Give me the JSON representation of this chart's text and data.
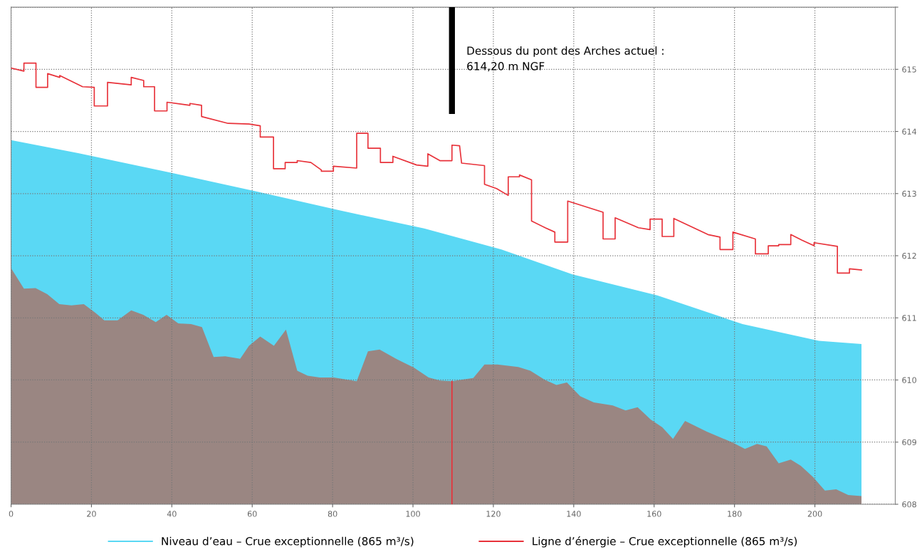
{
  "chart_data": {
    "type": "line",
    "xlim": [
      0,
      220
    ],
    "xticks": [
      0,
      20,
      40,
      60,
      80,
      100,
      120,
      140,
      160,
      180,
      200
    ],
    "ylim": [
      608,
      616
    ],
    "yticks": [
      608,
      609,
      610,
      611,
      612,
      613,
      614,
      615,
      {
        "value": 616,
        "label": null
      }
    ],
    "grid": true,
    "legend": "bottom",
    "series": [
      {
        "name": "Niveau d’eau – Crue exceptionnelle (865 m³/s)",
        "type": "area",
        "color": "#5ad8f4",
        "x": [
          0,
          16.7,
          40.2,
          60.6,
          81.7,
          102.8,
          122,
          139.7,
          160.8,
          182,
          201,
          211.6
        ],
        "values": [
          613.86,
          613.65,
          613.33,
          613.04,
          612.73,
          612.44,
          612.1,
          611.7,
          611.36,
          610.9,
          610.63,
          610.58
        ]
      },
      {
        "type": "area",
        "color": "#9a8682",
        "x": [
          0,
          3.2,
          6.1,
          9,
          12,
          15,
          18.1,
          21,
          23.2,
          26.5,
          29.9,
          32.9,
          36,
          38.7,
          41.6,
          44.8,
          47.5,
          50.4,
          53.3,
          57,
          59.2,
          62,
          65.4,
          68.4,
          71.2,
          73.8,
          76.8,
          80.3,
          86,
          88.8,
          91.7,
          95.8,
          100.2,
          103.9,
          106.7,
          109.7,
          111.6,
          115,
          117.8,
          121,
          126.2,
          129.2,
          132.9,
          135.7,
          138.3,
          141.6,
          145,
          149.7,
          152.9,
          155.9,
          159.2,
          162,
          164.7,
          167.7,
          173.1,
          179.6,
          182.6,
          185.6,
          188,
          191,
          194,
          196.5,
          199.5,
          202.5,
          205.3,
          208.3,
          211.6
        ],
        "values": [
          611.8,
          611.47,
          611.48,
          611.38,
          611.22,
          611.2,
          611.22,
          611.08,
          610.96,
          610.96,
          611.12,
          611.05,
          610.93,
          611.05,
          610.91,
          610.9,
          610.85,
          610.37,
          610.38,
          610.34,
          610.55,
          610.7,
          610.55,
          610.81,
          610.15,
          610.07,
          610.04,
          610.04,
          609.98,
          610.46,
          610.49,
          610.34,
          610.2,
          610.04,
          609.99,
          609.98,
          610.0,
          610.03,
          610.25,
          610.25,
          610.21,
          610.15,
          610.0,
          609.92,
          609.96,
          609.74,
          609.64,
          609.59,
          609.51,
          609.56,
          609.36,
          609.24,
          609.05,
          609.34,
          609.17,
          608.99,
          608.89,
          608.97,
          608.93,
          608.66,
          608.72,
          608.62,
          608.44,
          608.22,
          608.24,
          608.15,
          608.13
        ]
      },
      {
        "name": "Ligne d’énergie – Crue exceptionnelle (865 m³/s)",
        "color": "#e8323a",
        "x": [
          0,
          3.2,
          3.2,
          6.2,
          6.2,
          9.1,
          9.1,
          12.1,
          12.1,
          17.8,
          20.7,
          20.7,
          24,
          24,
          29.9,
          29.9,
          33,
          33,
          35.7,
          35.7,
          38.8,
          38.8,
          44.5,
          44.5,
          47.4,
          47.4,
          54,
          59.2,
          62,
          62,
          65.3,
          65.3,
          68.2,
          68.2,
          71.2,
          71.2,
          74.6,
          77.2,
          77.2,
          80.2,
          80.2,
          86,
          86,
          88.8,
          88.8,
          91.9,
          91.9,
          95,
          95,
          100.9,
          103.7,
          103.7,
          106.7,
          109.7,
          109.7,
          111.6,
          112.1,
          117.8,
          117.8,
          120.8,
          123.7,
          123.7,
          126.5,
          126.5,
          129.5,
          129.5,
          132.9,
          135.3,
          135.3,
          138.5,
          138.5,
          147.3,
          147.3,
          150.3,
          150.3,
          156.1,
          159,
          159,
          162,
          162,
          164.9,
          164.9,
          173.4,
          176.4,
          176.4,
          179.6,
          179.6,
          185.2,
          185.2,
          188.4,
          188.4,
          191,
          191,
          194,
          194,
          196.8,
          199.8,
          199.8,
          205.6,
          205.6,
          208.6,
          208.6,
          211.6
        ],
        "values": [
          615.02,
          614.97,
          615.1,
          615.1,
          614.71,
          614.71,
          614.93,
          614.87,
          614.9,
          614.72,
          614.71,
          614.41,
          614.41,
          614.79,
          614.75,
          614.87,
          614.82,
          614.72,
          614.72,
          614.33,
          614.33,
          614.47,
          614.42,
          614.45,
          614.42,
          614.24,
          614.13,
          614.12,
          614.09,
          613.91,
          613.91,
          613.4,
          613.4,
          613.5,
          613.5,
          613.53,
          613.5,
          613.38,
          613.36,
          613.36,
          613.44,
          613.41,
          613.97,
          613.97,
          613.73,
          613.73,
          613.5,
          613.5,
          613.6,
          613.46,
          613.44,
          613.64,
          613.53,
          613.53,
          613.78,
          613.77,
          613.49,
          613.45,
          613.15,
          613.08,
          612.97,
          613.27,
          613.27,
          613.3,
          613.22,
          612.56,
          612.45,
          612.38,
          612.22,
          612.22,
          612.88,
          612.7,
          612.27,
          612.27,
          612.61,
          612.45,
          612.42,
          612.59,
          612.59,
          612.31,
          612.31,
          612.6,
          612.34,
          612.3,
          612.1,
          612.1,
          612.38,
          612.27,
          612.03,
          612.03,
          612.16,
          612.16,
          612.18,
          612.18,
          612.34,
          612.25,
          612.16,
          612.21,
          612.15,
          611.72,
          611.72,
          611.79,
          611.77
        ]
      },
      {
        "type": "line",
        "color": "#000000",
        "x": [
          109.7,
          109.7
        ],
        "values": [
          616,
          614.33
        ]
      },
      {
        "type": "line",
        "color": "#e8323a",
        "x": [
          109.7,
          109.7
        ],
        "values": [
          609.98,
          608
        ]
      }
    ],
    "annotations": [
      "Dessous du pont des Arches actuel :\n614,20 m NGF"
    ]
  }
}
